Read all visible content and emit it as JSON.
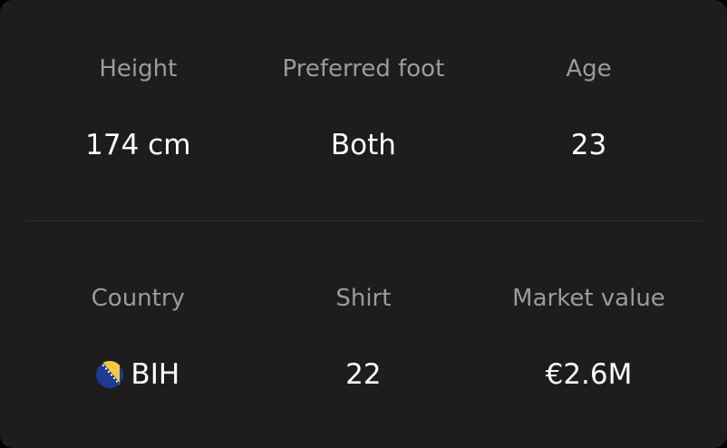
{
  "stats": {
    "height": {
      "label": "Height",
      "value": "174 cm"
    },
    "preferred_foot": {
      "label": "Preferred foot",
      "value": "Both"
    },
    "age": {
      "label": "Age",
      "value": "23"
    },
    "country": {
      "label": "Country",
      "value": "BIH",
      "flag_icon": "bosnia-herzegovina-flag-icon"
    },
    "shirt": {
      "label": "Shirt",
      "value": "22"
    },
    "market_value": {
      "label": "Market value",
      "value": "€2.6M"
    }
  },
  "colors": {
    "card_background": "#1d1d1d",
    "label_text": "#9b9b9b",
    "value_text": "#ffffff",
    "divider": "#2e2e2e"
  }
}
